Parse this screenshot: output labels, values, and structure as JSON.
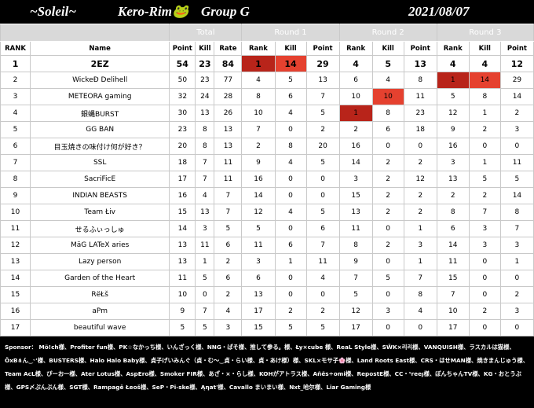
{
  "header": {
    "team": "~Soleil~",
    "event": "Kero-Rim🐸",
    "group": "Group G",
    "date": "2021/08/07"
  },
  "table": {
    "groups": [
      "Total",
      "Round 1",
      "Round 2",
      "Round 3"
    ],
    "columns": [
      "RANK",
      "Name",
      "Point",
      "Kill",
      "Rate",
      "Rank",
      "Kill",
      "Point",
      "Rank",
      "Kill",
      "Point",
      "Rank",
      "Kill",
      "Point"
    ],
    "rows": [
      [
        1,
        "2EZ",
        54,
        23,
        84,
        1,
        14,
        29,
        4,
        5,
        13,
        4,
        4,
        12
      ],
      [
        2,
        "WickeÐ Delihell",
        50,
        23,
        77,
        4,
        5,
        13,
        6,
        4,
        8,
        1,
        14,
        29
      ],
      [
        3,
        "METEORA gaming",
        32,
        24,
        28,
        8,
        6,
        7,
        10,
        10,
        11,
        5,
        8,
        14
      ],
      [
        4,
        "銀蝿BURST",
        30,
        13,
        26,
        10,
        4,
        5,
        1,
        8,
        23,
        12,
        1,
        2
      ],
      [
        5,
        "GG BAN",
        23,
        8,
        13,
        7,
        0,
        2,
        2,
        6,
        18,
        9,
        2,
        3
      ],
      [
        6,
        "目玉焼きの味付け何が好き？",
        20,
        8,
        13,
        2,
        8,
        20,
        16,
        0,
        0,
        16,
        0,
        0
      ],
      [
        7,
        "SSL",
        18,
        7,
        11,
        9,
        4,
        5,
        14,
        2,
        2,
        3,
        1,
        11
      ],
      [
        8,
        "SacriFicE",
        17,
        7,
        11,
        16,
        0,
        0,
        3,
        2,
        12,
        13,
        5,
        5
      ],
      [
        9,
        "INDIAN BEASTS",
        16,
        4,
        7,
        14,
        0,
        0,
        15,
        2,
        2,
        2,
        2,
        14
      ],
      [
        10,
        "Team Łiv",
        15,
        13,
        7,
        12,
        4,
        5,
        13,
        2,
        2,
        8,
        7,
        8
      ],
      [
        11,
        "せるふぃっしゅ",
        14,
        3,
        5,
        5,
        0,
        6,
        11,
        0,
        1,
        6,
        3,
        7
      ],
      [
        12,
        "MäG LATeX aries",
        13,
        11,
        6,
        11,
        6,
        7,
        8,
        2,
        3,
        14,
        3,
        3
      ],
      [
        13,
        "Lazy person",
        13,
        1,
        2,
        3,
        1,
        11,
        9,
        0,
        1,
        11,
        0,
        1
      ],
      [
        14,
        "Garden of the Heart",
        11,
        5,
        6,
        6,
        0,
        4,
        7,
        5,
        7,
        15,
        0,
        0
      ],
      [
        15,
        "RёŁš",
        10,
        0,
        2,
        13,
        0,
        0,
        5,
        0,
        8,
        7,
        0,
        2
      ],
      [
        16,
        "aPm",
        9,
        7,
        4,
        17,
        2,
        2,
        12,
        3,
        4,
        10,
        2,
        3
      ],
      [
        17,
        "beautiful wave",
        5,
        5,
        3,
        15,
        5,
        5,
        17,
        0,
        0,
        17,
        0,
        0
      ]
    ]
  },
  "sponsor": "Sponsor： Mö!ch様、Profiter fun様、PK☆なかっち様、いんざっく様、NNG・ぱそ様、推して参る。様、Ły×cube 様、ReaL Style様、SW̃K×리리様、VANQUISH様、ラスカルは猫様、ÖxB⋔ん‿ᵕ'様、BUSTERS様、Halo Halo Baby様、貞子げいみんぐ（貞・む〜‿貞・らい様、貞・あけ様）様、SKL×モサ子🌸様、Land Roots East様、CRS・はせMAN様、焼きまんじゅう様、Team AcL様、ぴーお一様、Ater Lotus様、AspEro様、Smoker FIR様、あざ・×・らし様、KOHがアトラス様、Añës÷omi様、RepostE様、CC・ᵗreeȷ様、ぽんちゃんTV様、KG・おとうぶ様、GPS〆ぷんぷん様、SGT様、Rampagě Łeoš様、SeP・Pi-ske様、Ąηat'様、Cavallo まいまい様、Nxt_哈尔様、Liar Gaming様"
}
